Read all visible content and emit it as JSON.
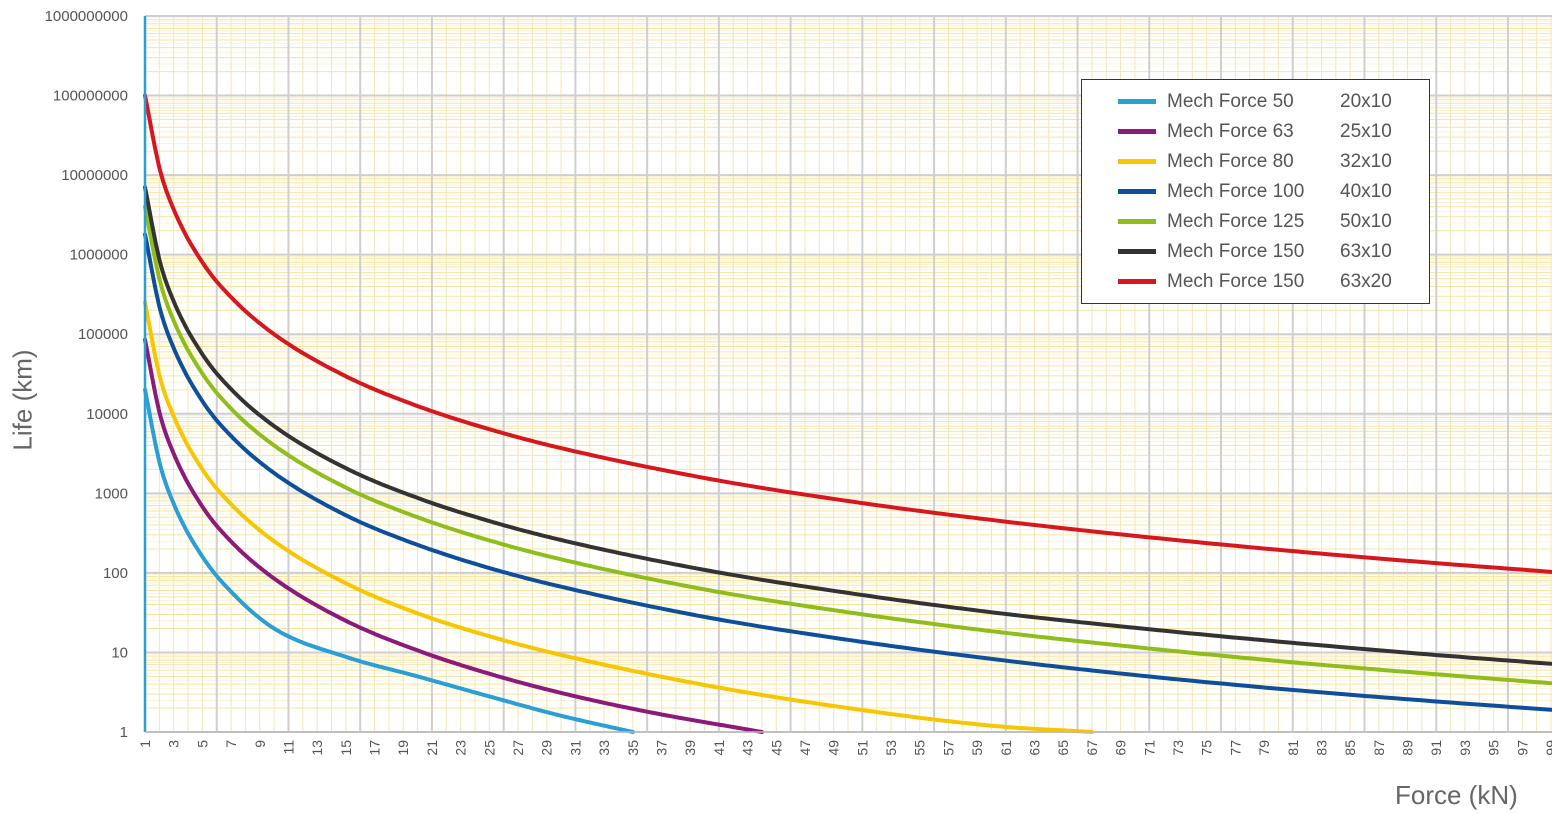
{
  "chart_data": {
    "type": "line",
    "title": "",
    "xlabel": "Force (kN)",
    "ylabel": "Life (km)",
    "xlim": [
      1,
      99
    ],
    "ylim": [
      1,
      1000000000
    ],
    "yscale": "log",
    "grid": true,
    "legend_position": "top-right",
    "x_tick_labels": [
      "1",
      "3",
      "5",
      "7",
      "9",
      "11",
      "13",
      "15",
      "17",
      "19",
      "21",
      "23",
      "25",
      "27",
      "29",
      "31",
      "33",
      "35",
      "37",
      "39",
      "41",
      "43",
      "45",
      "47",
      "49",
      "51",
      "53",
      "55",
      "57",
      "59",
      "61",
      "63",
      "65",
      "67",
      "69",
      "71",
      "73",
      "75",
      "77",
      "79",
      "81",
      "83",
      "85",
      "87",
      "89",
      "91",
      "93",
      "95",
      "97",
      "99"
    ],
    "y_tick_labels": [
      "1",
      "10",
      "100",
      "1000",
      "10000",
      "100000",
      "1000000",
      "10000000",
      "100000000",
      "1000000000"
    ],
    "series": [
      {
        "name": "Mech Force 50",
        "size": "20x10",
        "color": "#2a9fd6",
        "points": [
          [
            1,
            20000
          ],
          [
            2,
            2500
          ],
          [
            3,
            740
          ],
          [
            5,
            160
          ],
          [
            7,
            58
          ],
          [
            10,
            20
          ],
          [
            15,
            8.8
          ],
          [
            20,
            5
          ],
          [
            25,
            2.8
          ],
          [
            30,
            1.6
          ],
          [
            35,
            1
          ]
        ]
      },
      {
        "name": "Mech Force 63",
        "size": "25x10",
        "color": "#8b1a7a",
        "points": [
          [
            1,
            85000
          ],
          [
            2,
            10600
          ],
          [
            3,
            3150
          ],
          [
            5,
            680
          ],
          [
            7,
            248
          ],
          [
            10,
            85
          ],
          [
            15,
            25
          ],
          [
            20,
            10.6
          ],
          [
            25,
            5.4
          ],
          [
            30,
            3.1
          ],
          [
            36,
            1.8
          ],
          [
            44,
            1
          ]
        ]
      },
      {
        "name": "Mech Force 80",
        "size": "32x10",
        "color": "#f7c600",
        "points": [
          [
            1,
            250000
          ],
          [
            2,
            31000
          ],
          [
            3,
            9300
          ],
          [
            5,
            2000
          ],
          [
            7,
            730
          ],
          [
            10,
            250
          ],
          [
            15,
            74
          ],
          [
            20,
            31
          ],
          [
            25,
            16
          ],
          [
            30,
            9.3
          ],
          [
            40,
            3.9
          ],
          [
            50,
            2
          ],
          [
            60,
            1.2
          ],
          [
            67,
            1
          ]
        ]
      },
      {
        "name": "Mech Force 100",
        "size": "40x10",
        "color": "#0d4f9c",
        "points": [
          [
            1,
            1800000
          ],
          [
            2,
            225000
          ],
          [
            3,
            67000
          ],
          [
            5,
            14400
          ],
          [
            7,
            5250
          ],
          [
            10,
            1800
          ],
          [
            15,
            530
          ],
          [
            20,
            225
          ],
          [
            25,
            115
          ],
          [
            30,
            67
          ],
          [
            40,
            28
          ],
          [
            50,
            14.4
          ],
          [
            60,
            8.3
          ],
          [
            70,
            5.2
          ],
          [
            80,
            3.5
          ],
          [
            90,
            2.5
          ],
          [
            99,
            1.9
          ]
        ]
      },
      {
        "name": "Mech Force 125",
        "size": "50x10",
        "color": "#8fbd1b",
        "points": [
          [
            1,
            4000000
          ],
          [
            2,
            500000
          ],
          [
            3,
            148000
          ],
          [
            5,
            32000
          ],
          [
            7,
            11600
          ],
          [
            10,
            4000
          ],
          [
            15,
            1180
          ],
          [
            20,
            500
          ],
          [
            25,
            256
          ],
          [
            30,
            148
          ],
          [
            40,
            62
          ],
          [
            50,
            32
          ],
          [
            60,
            18.5
          ],
          [
            70,
            11.7
          ],
          [
            80,
            7.8
          ],
          [
            90,
            5.5
          ],
          [
            99,
            4.1
          ]
        ]
      },
      {
        "name": "Mech Force 150",
        "size": "63x10",
        "color": "#333333",
        "points": [
          [
            1,
            7000000
          ],
          [
            2,
            875000
          ],
          [
            3,
            259000
          ],
          [
            5,
            56000
          ],
          [
            7,
            20400
          ],
          [
            10,
            7000
          ],
          [
            15,
            2070
          ],
          [
            20,
            875
          ],
          [
            25,
            448
          ],
          [
            30,
            259
          ],
          [
            40,
            109
          ],
          [
            50,
            56
          ],
          [
            60,
            32
          ],
          [
            70,
            20.4
          ],
          [
            80,
            13.7
          ],
          [
            90,
            9.6
          ],
          [
            99,
            7.2
          ]
        ]
      },
      {
        "name": "Mech Force 150",
        "size": "63x20",
        "color": "#d7161d",
        "points": [
          [
            1,
            100000000
          ],
          [
            2,
            12500000
          ],
          [
            3,
            3700000
          ],
          [
            5,
            800000
          ],
          [
            7,
            292000
          ],
          [
            10,
            100000
          ],
          [
            15,
            29600
          ],
          [
            20,
            12500
          ],
          [
            25,
            6400
          ],
          [
            30,
            3700
          ],
          [
            40,
            1560
          ],
          [
            50,
            800
          ],
          [
            60,
            463
          ],
          [
            70,
            292
          ],
          [
            80,
            195
          ],
          [
            90,
            137
          ],
          [
            99,
            103
          ]
        ]
      }
    ]
  }
}
